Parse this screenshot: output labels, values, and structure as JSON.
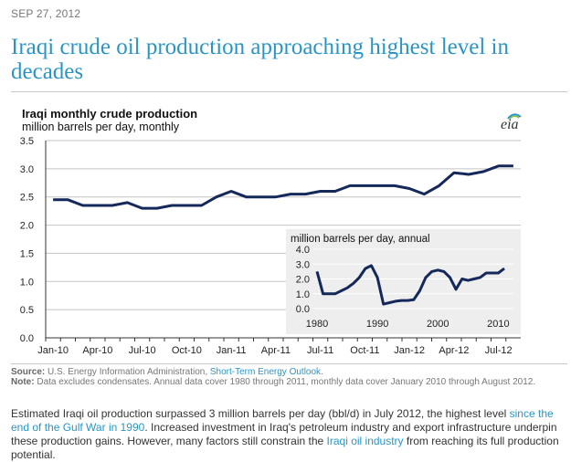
{
  "date": "SEP 27, 2012",
  "headline": "Iraqi crude oil production approaching highest level in decades",
  "logo": "eia",
  "source": {
    "label": "Source:",
    "text": "U.S. Energy Information Administration,",
    "link": "Short-Term Energy Outlook",
    "end": "."
  },
  "note": {
    "label": "Note:",
    "text": "Data excludes condensates. Annual data cover 1980 through 2011, monthly data cover January 2010 through August 2012."
  },
  "body": {
    "p1": "Estimated Iraqi oil production surpassed 3 million barrels per day (bbl/d) in July 2012, the highest level",
    "link1": "since the end of the Gulf War in 1990",
    "p2": ". Increased investment in Iraq's petroleum industry and export infrastructure underpin these production gains. However, many factors still constrain the",
    "link2": "Iraqi oil industry",
    "p3": "from reaching its full production potential."
  },
  "colors": {
    "line": "#14285a",
    "headline": "#2a95c5",
    "inset_bg": "#eeeeee",
    "link": "#2a95c5"
  },
  "chart_data": [
    {
      "type": "line",
      "title": "Iraqi monthly crude production",
      "ylabel": "million barrels per day, monthly",
      "ylim": [
        0,
        3.5
      ],
      "yticks": [
        "0.0",
        "0.5",
        "1.0",
        "1.5",
        "2.0",
        "2.5",
        "3.0",
        "3.5"
      ],
      "xticks": [
        "Jan-10",
        "Apr-10",
        "Jul-10",
        "Oct-10",
        "Jan-11",
        "Apr-11",
        "Jul-11",
        "Oct-11",
        "Jan-12",
        "Apr-12",
        "Jul-12"
      ],
      "grid": "horizontal",
      "x": [
        "Jan-10",
        "Feb-10",
        "Mar-10",
        "Apr-10",
        "May-10",
        "Jun-10",
        "Jul-10",
        "Aug-10",
        "Sep-10",
        "Oct-10",
        "Nov-10",
        "Dec-10",
        "Jan-11",
        "Feb-11",
        "Mar-11",
        "Apr-11",
        "May-11",
        "Jun-11",
        "Jul-11",
        "Aug-11",
        "Sep-11",
        "Oct-11",
        "Nov-11",
        "Dec-11",
        "Jan-12",
        "Feb-12",
        "Mar-12",
        "Apr-12",
        "May-12",
        "Jun-12",
        "Jul-12",
        "Aug-12"
      ],
      "values": [
        2.45,
        2.45,
        2.35,
        2.35,
        2.35,
        2.4,
        2.3,
        2.3,
        2.35,
        2.35,
        2.35,
        2.5,
        2.6,
        2.5,
        2.5,
        2.5,
        2.55,
        2.55,
        2.6,
        2.6,
        2.7,
        2.7,
        2.7,
        2.7,
        2.65,
        2.55,
        2.7,
        2.93,
        2.9,
        2.95,
        3.05,
        3.05
      ]
    },
    {
      "type": "line",
      "title": "million barrels per day, annual",
      "ylim": [
        0,
        4
      ],
      "yticks": [
        "0.0",
        "1.0",
        "2.0",
        "3.0",
        "4.0"
      ],
      "xticks": [
        "1980",
        "1990",
        "2000",
        "2010"
      ],
      "x": [
        1980,
        1981,
        1982,
        1983,
        1984,
        1985,
        1986,
        1987,
        1988,
        1989,
        1990,
        1991,
        1992,
        1993,
        1994,
        1995,
        1996,
        1997,
        1998,
        1999,
        2000,
        2001,
        2002,
        2003,
        2004,
        2005,
        2006,
        2007,
        2008,
        2009,
        2010,
        2011
      ],
      "values": [
        2.5,
        1.0,
        1.0,
        1.0,
        1.2,
        1.4,
        1.7,
        2.1,
        2.7,
        2.9,
        2.1,
        0.3,
        0.4,
        0.5,
        0.55,
        0.55,
        0.6,
        1.2,
        2.1,
        2.5,
        2.6,
        2.5,
        2.1,
        1.3,
        2.0,
        1.9,
        2.0,
        2.1,
        2.4,
        2.4,
        2.4,
        2.7
      ]
    }
  ]
}
